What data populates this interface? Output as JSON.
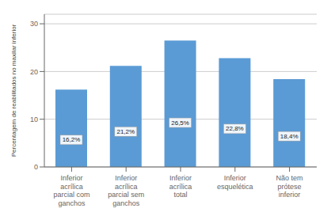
{
  "chart_data": {
    "type": "bar",
    "categories": [
      "Inferior\nacrílica\nparcial com\nganchos",
      "Inferior\nacrílica\nparcial sem\nganchos",
      "Inferior\nacrílica\ntotal",
      "Inferior\nesquelética",
      "Não tem\nprótese\ninferior"
    ],
    "values": [
      16.2,
      21.2,
      26.5,
      22.8,
      18.4
    ],
    "value_labels": [
      "16,2%",
      "21,2%",
      "26,5%",
      "22,8%",
      "18,4%"
    ],
    "data_labels": true,
    "color": "#5B9BD5",
    "ylabel": "Percentagem de reabilitados no maxilar inferior",
    "ylim": [
      0,
      32
    ],
    "yticks": [
      0,
      10,
      20,
      30
    ],
    "grid": true
  }
}
